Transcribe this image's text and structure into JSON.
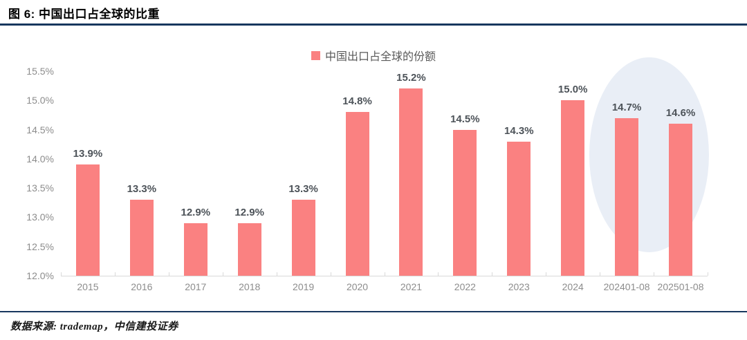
{
  "figure": {
    "title": "图 6: 中国出口占全球的比重"
  },
  "legend": {
    "label": "中国出口占全球的份额"
  },
  "footer": {
    "source": "数据来源: trademap，中信建投证券"
  },
  "colors": {
    "bar": "#FA8181",
    "rule_navy": "#17375E",
    "highlight_ellipse": "#E9EEF6",
    "axis_line": "#D9D9D9",
    "axis_text": "#8C8C8C",
    "data_label_text": "#4D5359"
  },
  "chart_data": {
    "type": "bar",
    "title": "图 6: 中国出口占全球的比重",
    "legend_entries": [
      "中国出口占全球的份额"
    ],
    "legend_position": "top-center",
    "categories": [
      "2015",
      "2016",
      "2017",
      "2018",
      "2019",
      "2020",
      "2021",
      "2022",
      "2023",
      "2024",
      "202401-08",
      "202501-08"
    ],
    "values": [
      13.9,
      13.3,
      12.9,
      12.9,
      13.3,
      14.8,
      15.2,
      14.5,
      14.3,
      15.0,
      14.7,
      14.6
    ],
    "data_labels": [
      "13.9%",
      "13.3%",
      "12.9%",
      "12.9%",
      "13.3%",
      "14.8%",
      "15.2%",
      "14.5%",
      "14.3%",
      "15.0%",
      "14.7%",
      "14.6%"
    ],
    "xlabel": "",
    "ylabel": "",
    "ylim": [
      12.0,
      15.5
    ],
    "ytick_labels": [
      "15.5%",
      "15.0%",
      "14.5%",
      "14.0%",
      "13.5%",
      "13.0%",
      "12.5%",
      "12.0%"
    ],
    "grid": false,
    "annotations": [
      {
        "kind": "ellipse-highlight",
        "covers_categories": [
          "202401-08",
          "202501-08"
        ]
      }
    ]
  }
}
